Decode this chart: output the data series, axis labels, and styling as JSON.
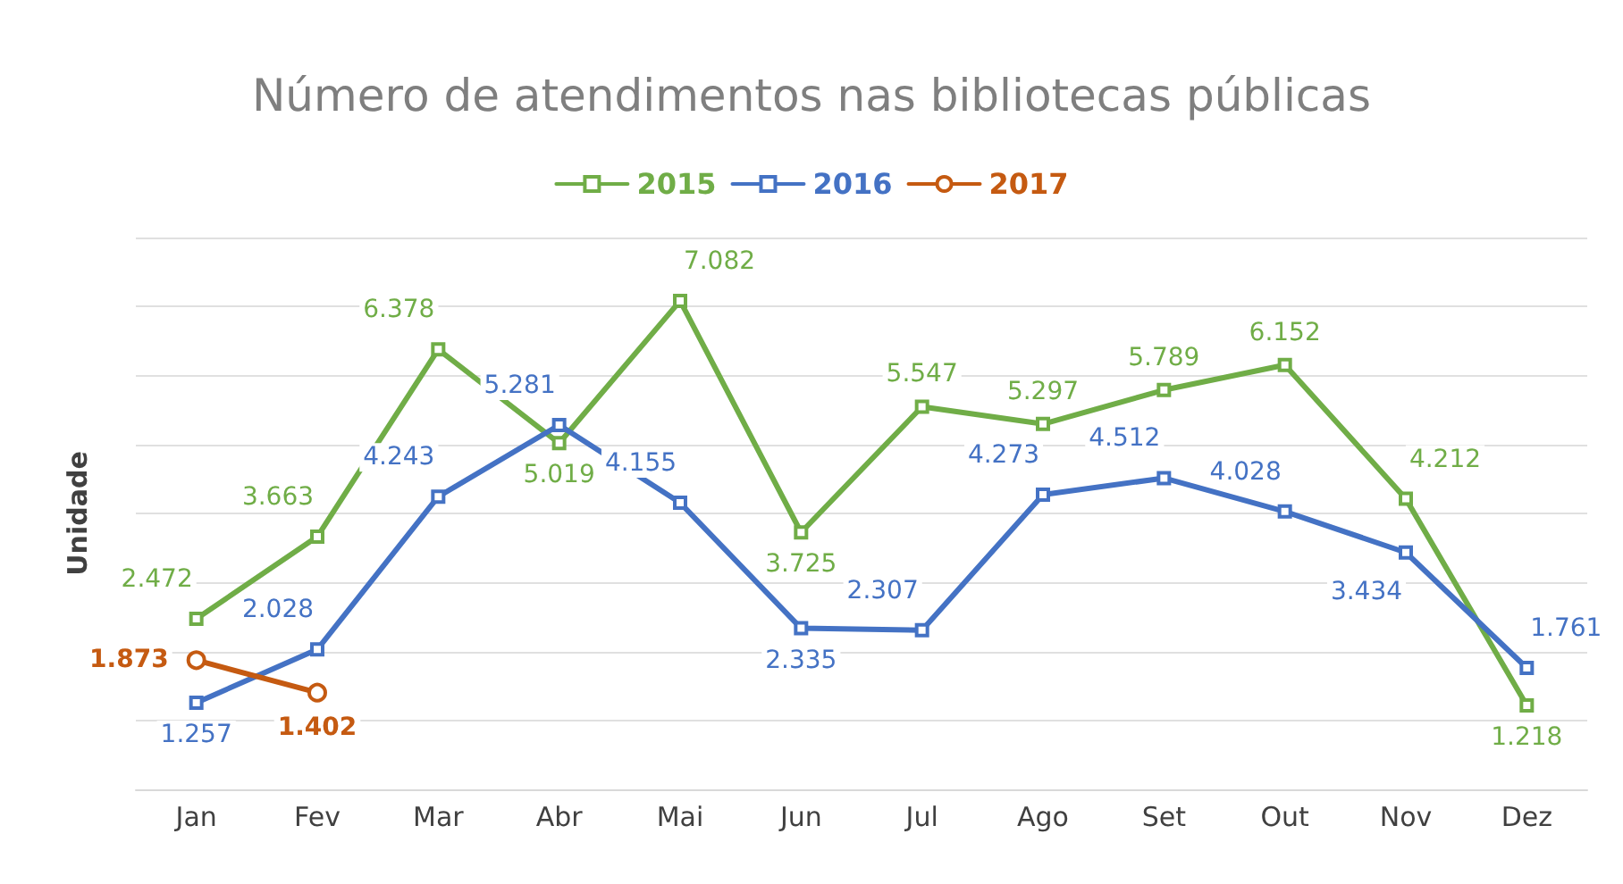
{
  "chart_data": {
    "type": "line",
    "title": "Número de atendimentos nas bibliotecas públicas",
    "ylabel": "Unidade",
    "categories": [
      "Jan",
      "Fev",
      "Mar",
      "Abr",
      "Mai",
      "Jun",
      "Jul",
      "Ago",
      "Set",
      "Out",
      "Nov",
      "Dez"
    ],
    "series": [
      {
        "name": "2015",
        "color": "#70ad47",
        "marker": "square",
        "values": [
          2472,
          3663,
          6378,
          5019,
          7082,
          3725,
          5547,
          5297,
          5789,
          6152,
          4212,
          1218
        ],
        "value_labels": [
          "2.472",
          "3.663",
          "6.378",
          "5.019",
          "7.082",
          "3.725",
          "5.547",
          "5.297",
          "5.789",
          "6.152",
          "4.212",
          "1.218"
        ]
      },
      {
        "name": "2016",
        "color": "#4472c4",
        "marker": "square",
        "values": [
          1257,
          2028,
          4243,
          5281,
          4155,
          2335,
          2307,
          4273,
          4512,
          4028,
          3434,
          1761
        ],
        "value_labels": [
          "1.257",
          "2.028",
          "4.243",
          "5.281",
          "4.155",
          "2.335",
          "2.307",
          "4.273",
          "4.512",
          "4.028",
          "3.434",
          "1.761"
        ]
      },
      {
        "name": "2017",
        "color": "#c55a11",
        "marker": "circle",
        "values": [
          1873,
          1402,
          null,
          null,
          null,
          null,
          null,
          null,
          null,
          null,
          null,
          null
        ],
        "value_labels": [
          "1.873",
          "1.402",
          null,
          null,
          null,
          null,
          null,
          null,
          null,
          null,
          null,
          null
        ]
      }
    ],
    "legend": "top",
    "grid": "y",
    "line_style": "solid"
  }
}
